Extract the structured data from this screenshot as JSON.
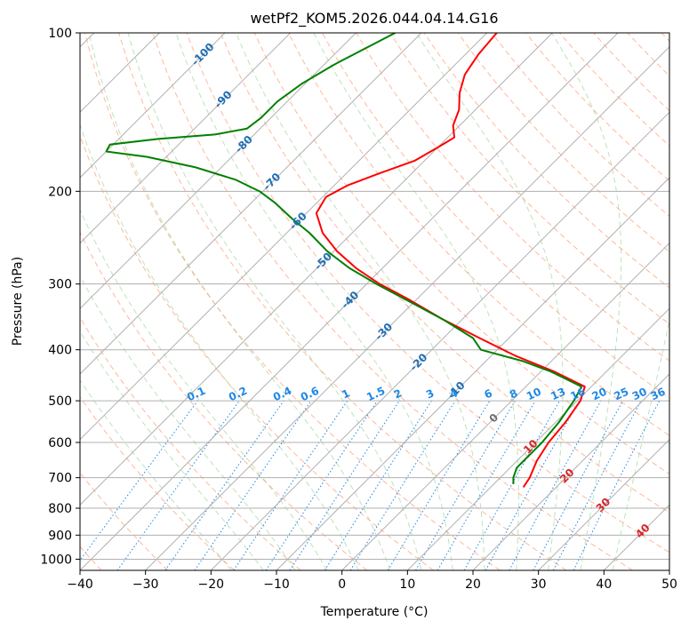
{
  "chart_data": {
    "type": "line",
    "chart_kind": "skew-t log-p sounding",
    "title": "wetPf2_KOM5.2026.044.04.14.G16",
    "xlabel": "Temperature (°C)",
    "ylabel": "Pressure (hPa)",
    "xlim": [
      -40,
      50
    ],
    "ylim": [
      1050,
      100
    ],
    "x_ticks": [
      -40,
      -30,
      -20,
      -10,
      0,
      10,
      20,
      30,
      40,
      50
    ],
    "x_tick_labels": [
      "−40",
      "−30",
      "−20",
      "−10",
      "0",
      "10",
      "20",
      "30",
      "40",
      "50"
    ],
    "y_ticks": [
      100,
      200,
      300,
      400,
      500,
      600,
      700,
      800,
      900,
      1000
    ],
    "y_tick_labels": [
      "100",
      "200",
      "300",
      "400",
      "500",
      "600",
      "700",
      "800",
      "900",
      "1000"
    ],
    "grid": true,
    "background_lines": {
      "isotherm_color": "#b0b0b0",
      "dry_adiabat_color": "#ffa07a",
      "moist_adiabat_color": "#8fd08f",
      "mixing_ratio_color": "#1e88e5"
    },
    "isotherm_labels": [
      {
        "text": "-100",
        "t": -100,
        "p": 110
      },
      {
        "text": "-90",
        "t": -90,
        "p": 134
      },
      {
        "text": "-80",
        "t": -80,
        "p": 163
      },
      {
        "text": "-70",
        "t": -70,
        "p": 192
      },
      {
        "text": "-60",
        "t": -60,
        "p": 228
      },
      {
        "text": "-50",
        "t": -50,
        "p": 272
      },
      {
        "text": "-40",
        "t": -40,
        "p": 322
      },
      {
        "text": "-30",
        "t": -30,
        "p": 370
      },
      {
        "text": "-20",
        "t": -20,
        "p": 423
      },
      {
        "text": "-10",
        "t": -10,
        "p": 478
      },
      {
        "text": "0",
        "t": 0,
        "p": 540,
        "style": "zero"
      },
      {
        "text": "10",
        "t": 10,
        "p": 612,
        "style": "warm"
      },
      {
        "text": "20",
        "t": 20,
        "p": 695,
        "style": "warm"
      },
      {
        "text": "30",
        "t": 30,
        "p": 790,
        "style": "warm"
      },
      {
        "text": "40",
        "t": 40,
        "p": 885,
        "style": "warm"
      }
    ],
    "mixing_ratio_labels": [
      "0.1",
      "0.2",
      "0.4",
      "0.6",
      "1",
      "1.5",
      "2",
      "3",
      "4",
      "6",
      "8",
      "10",
      "13",
      "16",
      "20",
      "25",
      "30",
      "36"
    ],
    "mixing_ratio_values": [
      0.1,
      0.2,
      0.4,
      0.6,
      1,
      1.5,
      2,
      3,
      4,
      6,
      8,
      10,
      13,
      16,
      20,
      25,
      30,
      36
    ],
    "series": [
      {
        "name": "Temperature",
        "color": "#ff0000",
        "points": [
          {
            "p": 730,
            "t": 15.0
          },
          {
            "p": 700,
            "t": 14.5
          },
          {
            "p": 650,
            "t": 13.0
          },
          {
            "p": 600,
            "t": 12.0
          },
          {
            "p": 550,
            "t": 11.5
          },
          {
            "p": 500,
            "t": 10.5
          },
          {
            "p": 470,
            "t": 9.0
          },
          {
            "p": 440,
            "t": 2.0
          },
          {
            "p": 410,
            "t": -6.5
          },
          {
            "p": 380,
            "t": -14.5
          },
          {
            "p": 350,
            "t": -23.0
          },
          {
            "p": 320,
            "t": -31.5
          },
          {
            "p": 300,
            "t": -38.0
          },
          {
            "p": 280,
            "t": -44.0
          },
          {
            "p": 260,
            "t": -49.5
          },
          {
            "p": 240,
            "t": -54.5
          },
          {
            "p": 220,
            "t": -58.5
          },
          {
            "p": 205,
            "t": -59.5
          },
          {
            "p": 195,
            "t": -58.0
          },
          {
            "p": 185,
            "t": -55.0
          },
          {
            "p": 175,
            "t": -51.5
          },
          {
            "p": 165,
            "t": -50.0
          },
          {
            "p": 158,
            "t": -49.0
          },
          {
            "p": 150,
            "t": -51.0
          },
          {
            "p": 140,
            "t": -52.5
          },
          {
            "p": 130,
            "t": -55.0
          },
          {
            "p": 120,
            "t": -57.0
          },
          {
            "p": 110,
            "t": -58.0
          },
          {
            "p": 100,
            "t": -58.5
          }
        ]
      },
      {
        "name": "Dewpoint",
        "color": "#008000",
        "points": [
          {
            "p": 720,
            "t": 13.0
          },
          {
            "p": 700,
            "t": 12.0
          },
          {
            "p": 670,
            "t": 11.0
          },
          {
            "p": 640,
            "t": 11.0
          },
          {
            "p": 600,
            "t": 11.0
          },
          {
            "p": 550,
            "t": 10.5
          },
          {
            "p": 500,
            "t": 9.5
          },
          {
            "p": 470,
            "t": 8.5
          },
          {
            "p": 440,
            "t": 1.5
          },
          {
            "p": 420,
            "t": -4.5
          },
          {
            "p": 400,
            "t": -12.5
          },
          {
            "p": 380,
            "t": -15.5
          },
          {
            "p": 350,
            "t": -23.0
          },
          {
            "p": 320,
            "t": -32.0
          },
          {
            "p": 300,
            "t": -38.5
          },
          {
            "p": 280,
            "t": -45.0
          },
          {
            "p": 260,
            "t": -51.0
          },
          {
            "p": 240,
            "t": -56.5
          },
          {
            "p": 225,
            "t": -61.5
          },
          {
            "p": 210,
            "t": -66.5
          },
          {
            "p": 200,
            "t": -70.5
          },
          {
            "p": 190,
            "t": -76.0
          },
          {
            "p": 180,
            "t": -84.0
          },
          {
            "p": 172,
            "t": -93.0
          },
          {
            "p": 168,
            "t": -100.0
          },
          {
            "p": 163,
            "t": -100.5
          },
          {
            "p": 159,
            "t": -94.0
          },
          {
            "p": 156,
            "t": -86.0
          },
          {
            "p": 152,
            "t": -82.0
          },
          {
            "p": 145,
            "t": -81.5
          },
          {
            "p": 135,
            "t": -81.5
          },
          {
            "p": 125,
            "t": -80.5
          },
          {
            "p": 115,
            "t": -78.5
          },
          {
            "p": 100,
            "t": -74.0
          }
        ]
      }
    ]
  }
}
